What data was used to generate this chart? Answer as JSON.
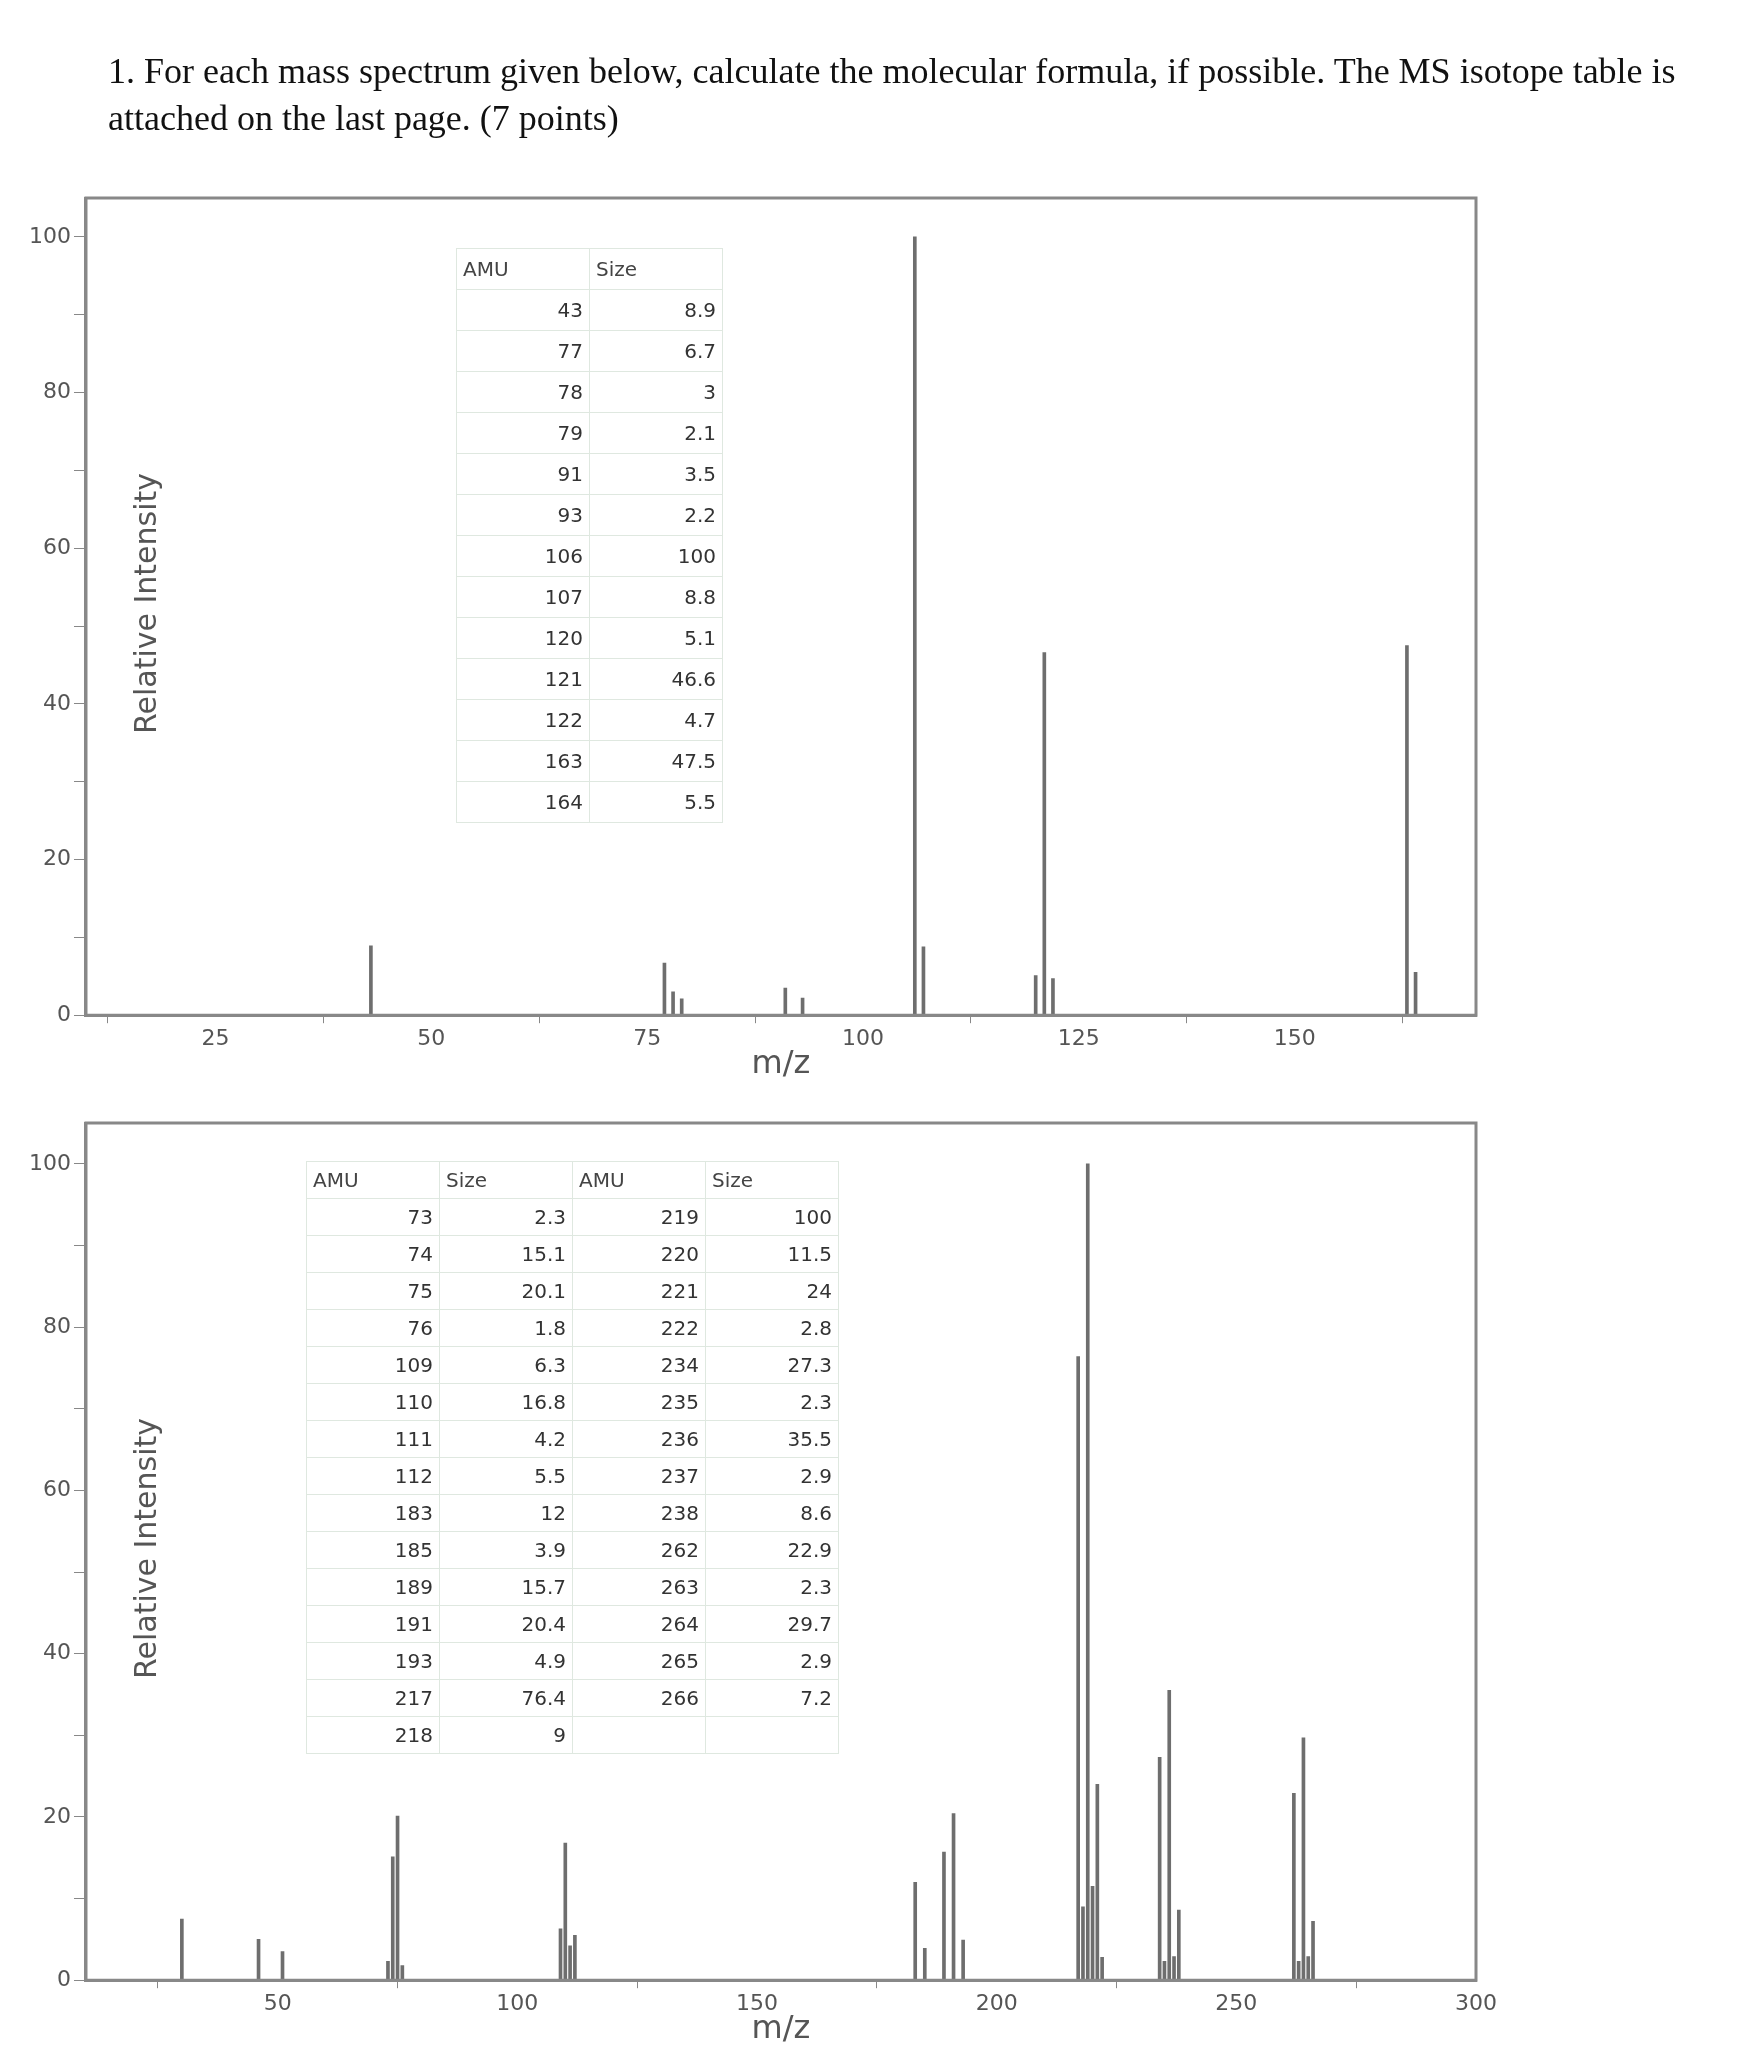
{
  "chart_data": [
    {
      "type": "bar",
      "title": "1.  For each mass spectrum given below, calculate the molecular formula, if possible.  The MS isotope table is attached on the last page.  (7 points)",
      "xlabel": "m/z",
      "ylabel": "Relative Intensity",
      "color": "#6e6e6e",
      "annotations": [
        "AMU",
        "Size",
        "43",
        "8.9",
        "77",
        "6.7",
        "78",
        "3",
        "79",
        "2.1",
        "91",
        "3.5",
        "93",
        "2.2",
        "106",
        "100",
        "107",
        "8.8",
        "120",
        "5.1",
        "121",
        "46.6",
        "122",
        "4.7",
        "163",
        "47.5",
        "164",
        "5.5"
      ],
      "x": [
        43,
        77,
        78,
        79,
        91,
        93,
        106,
        107,
        120,
        121,
        122,
        163,
        164
      ],
      "values": [
        8.9,
        6.7,
        3,
        2.1,
        3.5,
        2.2,
        100,
        8.8,
        5.1,
        46.6,
        4.7,
        47.5,
        5.5
      ],
      "xlim": [
        10,
        171
      ],
      "xticks": [
        25,
        50,
        75,
        {
          "value": 100,
          "label": "100"
        },
        125,
        150
      ],
      "ylim": [
        0,
        105
      ],
      "yticks": [
        0,
        {
          "value": 10,
          "label": null
        },
        20,
        {
          "value": 30,
          "label": null
        },
        40,
        {
          "value": 50,
          "label": null
        },
        60,
        {
          "value": 70,
          "label": null
        },
        80,
        {
          "value": 90,
          "label": null
        },
        100
      ]
    },
    {
      "type": "bar",
      "xlabel": "m/z",
      "ylabel": "Relative Intensity",
      "color": "#6e6e6e",
      "annotations": [
        "AMU",
        "Size",
        "AMU",
        "Size",
        "73",
        "2.3",
        "219",
        "100",
        "74",
        "15.1",
        "220",
        "11.5",
        "75",
        "20.1",
        "221",
        "24",
        "76",
        "1.8",
        "222",
        "2.8",
        "109",
        "6.3",
        "234",
        "27.3",
        "110",
        "16.8",
        "235",
        "2.3",
        "111",
        "4.2",
        "236",
        "35.5",
        "112",
        "5.5",
        "237",
        "2.9",
        "183",
        "12",
        "238",
        "8.6",
        "185",
        "3.9",
        "262",
        "22.9",
        "189",
        "15.7",
        "263",
        "2.3",
        "191",
        "20.4",
        "264",
        "29.7",
        "193",
        "4.9",
        "265",
        "2.9",
        "217",
        "76.4",
        "266",
        "7.2",
        "218",
        "9"
      ],
      "x": [
        30,
        46,
        51,
        73,
        74,
        75,
        76,
        109,
        110,
        111,
        112,
        183,
        185,
        189,
        191,
        193,
        217,
        218,
        219,
        220,
        221,
        222,
        234,
        235,
        236,
        237,
        238,
        262,
        263,
        264,
        265,
        266
      ],
      "values": [
        7.5,
        5,
        3.5,
        2.3,
        15.1,
        20.1,
        1.8,
        6.3,
        16.8,
        4.2,
        5.5,
        12,
        3.9,
        15.7,
        20.4,
        4.9,
        76.4,
        9,
        100,
        11.5,
        24,
        2.8,
        27.3,
        2.3,
        35.5,
        2.9,
        8.6,
        22.9,
        2.3,
        29.7,
        2.9,
        7.2
      ],
      "xlim": [
        10,
        300
      ],
      "xticks": [
        50,
        100,
        150,
        200,
        250,
        300
      ],
      "ylim": [
        0,
        105
      ],
      "yticks": [
        0,
        {
          "value": 10,
          "label": null
        },
        20,
        {
          "value": 30,
          "label": null
        },
        40,
        {
          "value": 50,
          "label": null
        },
        60,
        {
          "value": 70,
          "label": null
        },
        80,
        {
          "value": 90,
          "label": null
        },
        100
      ]
    }
  ]
}
